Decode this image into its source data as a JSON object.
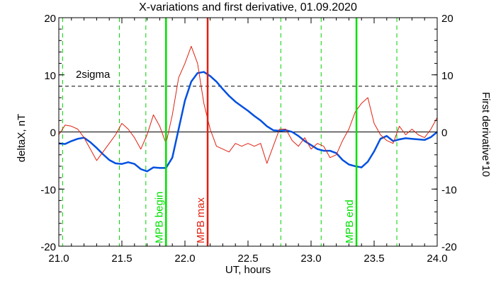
{
  "chart_data": {
    "type": "line",
    "title": "X-variations and first derivative, 01.09.2020",
    "xlabel": "UT, hours",
    "ylabel_left": "deltaX, nT",
    "ylabel_right": "First derivative*10",
    "xlim": [
      21.0,
      24.0
    ],
    "ylim": [
      -20,
      20
    ],
    "x_ticks": [
      21.0,
      21.5,
      22.0,
      22.5,
      23.0,
      23.5,
      24.0
    ],
    "x_tick_labels": [
      "21.0",
      "21.5",
      "22.0",
      "22.5",
      "23.0",
      "23.5",
      "24.0"
    ],
    "y_ticks": [
      20,
      10,
      0,
      -10,
      -20
    ],
    "y_tick_labels": [
      "20",
      "10",
      "0",
      "-10",
      "-20"
    ],
    "colors": {
      "deltaX": "#0050e0",
      "derivative": "#e02010",
      "mpb_green": "#00e000",
      "mpb_red": "#e02010",
      "dashed_green": "#00d000"
    },
    "sigma_line": {
      "y": 8,
      "label": "2sigma"
    },
    "zero_line": {
      "y": 0
    },
    "dashed_verticals": [
      21.03,
      21.48,
      21.69,
      22.76,
      23.08,
      23.68
    ],
    "mpb_lines": [
      {
        "x": 21.85,
        "label": "MPB begin",
        "color_key": "mpb_green"
      },
      {
        "x": 22.18,
        "label": "MPB max",
        "color_key": "mpb_red"
      },
      {
        "x": 23.36,
        "label": "MPB end",
        "color_key": "mpb_green"
      }
    ],
    "series": [
      {
        "key": "deltaX",
        "x": [
          21.0,
          21.05,
          21.1,
          21.15,
          21.2,
          21.25,
          21.3,
          21.35,
          21.4,
          21.45,
          21.5,
          21.55,
          21.6,
          21.65,
          21.7,
          21.75,
          21.8,
          21.85,
          21.9,
          21.95,
          22.0,
          22.05,
          22.1,
          22.15,
          22.2,
          22.25,
          22.3,
          22.35,
          22.4,
          22.45,
          22.5,
          22.55,
          22.6,
          22.65,
          22.7,
          22.75,
          22.8,
          22.85,
          22.9,
          22.95,
          23.0,
          23.05,
          23.1,
          23.15,
          23.2,
          23.25,
          23.3,
          23.35,
          23.4,
          23.45,
          23.5,
          23.55,
          23.6,
          23.65,
          23.7,
          23.75,
          23.8,
          23.85,
          23.9,
          23.95,
          24.0
        ],
        "values": [
          -2.0,
          -2.1,
          -1.6,
          -1.2,
          -1.0,
          -1.8,
          -2.8,
          -3.9,
          -4.9,
          -5.5,
          -5.6,
          -5.3,
          -5.6,
          -6.5,
          -6.9,
          -6.2,
          -6.3,
          -6.3,
          -4.5,
          0.5,
          5.5,
          8.8,
          10.3,
          10.5,
          9.8,
          8.8,
          7.5,
          6.3,
          5.3,
          4.5,
          3.7,
          2.8,
          2.0,
          1.0,
          0.3,
          0.2,
          0.3,
          0.0,
          -0.7,
          -1.6,
          -2.3,
          -3.0,
          -3.3,
          -3.3,
          -3.7,
          -4.9,
          -5.7,
          -6.0,
          -6.2,
          -5.2,
          -3.4,
          -1.2,
          -0.7,
          -1.6,
          -1.3,
          -1.1,
          -1.2,
          -1.3,
          -1.4,
          -0.9,
          0.0
        ]
      },
      {
        "key": "derivative",
        "x": [
          21.0,
          21.05,
          21.1,
          21.15,
          21.2,
          21.25,
          21.3,
          21.35,
          21.4,
          21.45,
          21.5,
          21.55,
          21.6,
          21.65,
          21.7,
          21.75,
          21.8,
          21.85,
          21.9,
          21.95,
          22.0,
          22.05,
          22.1,
          22.15,
          22.2,
          22.25,
          22.3,
          22.35,
          22.4,
          22.45,
          22.5,
          22.55,
          22.6,
          22.65,
          22.7,
          22.75,
          22.8,
          22.85,
          22.9,
          22.95,
          23.0,
          23.05,
          23.1,
          23.15,
          23.2,
          23.25,
          23.3,
          23.35,
          23.4,
          23.45,
          23.5,
          23.55,
          23.6,
          23.65,
          23.7,
          23.75,
          23.8,
          23.85,
          23.9,
          23.95,
          24.0
        ],
        "values": [
          -0.5,
          1.2,
          1.0,
          0.5,
          -1.0,
          -3.0,
          -5.0,
          -3.5,
          -2.0,
          -0.5,
          1.5,
          0.5,
          -1.0,
          -3.0,
          -0.5,
          3.0,
          1.0,
          -2.0,
          3.0,
          9.5,
          12.0,
          15.0,
          12.0,
          5.0,
          0.5,
          -2.5,
          -3.0,
          -3.5,
          -2.0,
          -2.5,
          -2.0,
          -2.5,
          -2.0,
          -5.5,
          -2.5,
          0.5,
          0.5,
          -1.5,
          -2.5,
          -1.0,
          -3.0,
          -2.0,
          -2.5,
          -4.5,
          -4.0,
          -1.5,
          0.5,
          3.5,
          5.0,
          6.0,
          1.5,
          -0.5,
          -1.5,
          -2.0,
          1.0,
          -0.5,
          0.5,
          -0.5,
          -1.0,
          0.5,
          2.5
        ]
      }
    ]
  }
}
